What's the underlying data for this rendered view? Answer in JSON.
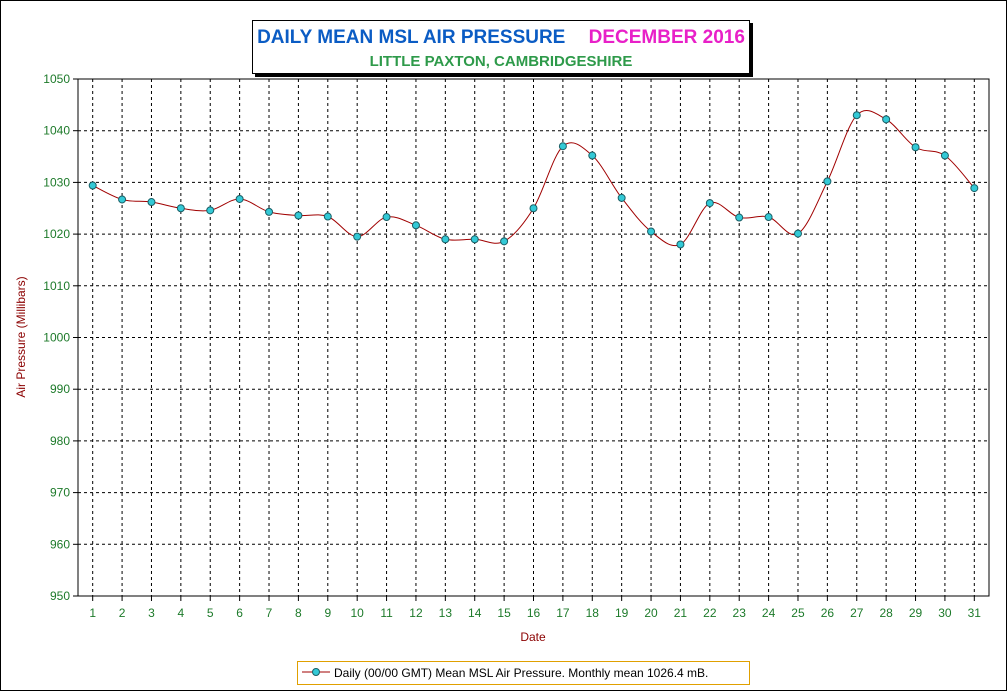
{
  "chart_data": {
    "type": "line",
    "title": "DAILY MEAN MSL AIR PRESSURE",
    "title_month": "DECEMBER 2016",
    "subtitle": "LITTLE PAXTON, CAMBRIDGESHIRE",
    "xlabel": "Date",
    "ylabel": "Air Pressure (Millibars)",
    "ylim": [
      950,
      1050
    ],
    "ytick_step": 10,
    "grid": true,
    "legend_placement": "bottom-center",
    "categories": [
      "1",
      "2",
      "3",
      "4",
      "5",
      "6",
      "7",
      "8",
      "9",
      "10",
      "11",
      "12",
      "13",
      "14",
      "15",
      "16",
      "17",
      "18",
      "19",
      "20",
      "21",
      "22",
      "23",
      "24",
      "25",
      "26",
      "27",
      "28",
      "29",
      "30",
      "31"
    ],
    "series": [
      {
        "name": "Daily (00/00 GMT) Mean MSL Air Pressure. Monthly mean 1026.4 mB.",
        "values": [
          1029.4,
          1026.7,
          1026.2,
          1025.0,
          1024.6,
          1026.8,
          1024.3,
          1023.6,
          1023.4,
          1019.5,
          1023.3,
          1021.7,
          1019.0,
          1019.0,
          1018.6,
          1025.0,
          1037.0,
          1035.2,
          1027.0,
          1020.5,
          1018.0,
          1026.0,
          1023.2,
          1023.3,
          1020.1,
          1030.2,
          1043.0,
          1042.2,
          1036.8,
          1035.2,
          1028.9
        ]
      }
    ],
    "colors": {
      "line": "#a00000",
      "marker_fill": "#33c9d6",
      "marker_stroke": "#1a5f66",
      "axis_text": "#1d7a2a",
      "axis_label": "#8b0000",
      "grid": "#000000"
    }
  }
}
